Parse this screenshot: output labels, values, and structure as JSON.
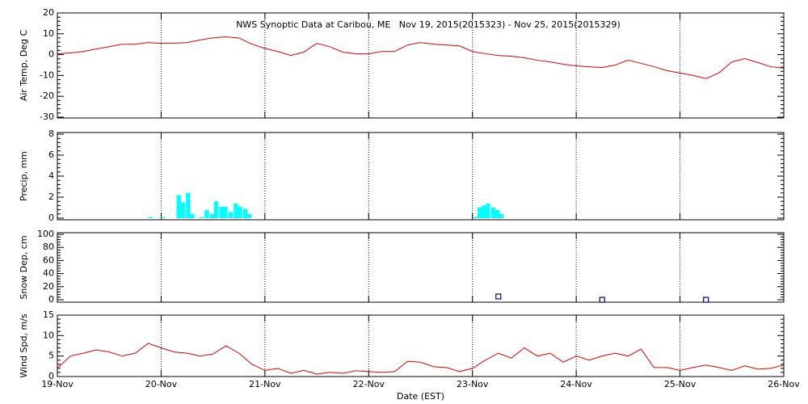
{
  "chart_data": [
    {
      "type": "line",
      "title": "NWS Synoptic Data at Caribou, ME   Nov 19, 2015(2015323) - Nov 25, 2015(2015329)",
      "ylabel": "Air Temp, Deg C",
      "color": "#e00000",
      "x": [
        0,
        0.125,
        0.25,
        0.375,
        0.5,
        0.625,
        0.75,
        0.875,
        1,
        1.125,
        1.25,
        1.375,
        1.5,
        1.625,
        1.75,
        1.875,
        2,
        2.125,
        2.25,
        2.375,
        2.5,
        2.625,
        2.75,
        2.875,
        3,
        3.125,
        3.25,
        3.375,
        3.5,
        3.625,
        3.75,
        3.875,
        4,
        4.125,
        4.25,
        4.375,
        4.5,
        4.625,
        4.75,
        4.875,
        5,
        5.125,
        5.25,
        5.375,
        5.5,
        5.625,
        5.75,
        5.875,
        6,
        6.125,
        6.25,
        6.375,
        6.5,
        6.625,
        6.75,
        6.875,
        7
      ],
      "values": [
        0.4,
        0.8,
        1.5,
        2.7,
        3.8,
        5,
        5,
        5.8,
        5.4,
        5.4,
        5.8,
        7,
        8.1,
        8.5,
        8,
        5,
        3,
        1.5,
        -0.4,
        1.2,
        5.4,
        3.8,
        1.2,
        0.4,
        0.4,
        1.5,
        1.5,
        4.6,
        5.8,
        5,
        4.6,
        4.2,
        1.5,
        0.4,
        -0.4,
        -0.8,
        -1.5,
        -2.7,
        -3.5,
        -4.6,
        -5.4,
        -5.8,
        -6.2,
        -5,
        -2.7,
        -4.2,
        -5.8,
        -7.7,
        -8.8,
        -10,
        -11.5,
        -8.8,
        -3.5,
        -1.9,
        -3.8,
        -5.8,
        -6.5
      ],
      "xlim": [
        0,
        7
      ],
      "xticks": [
        0,
        1,
        2,
        3,
        4,
        5,
        6,
        7
      ],
      "ylim": [
        -30,
        20
      ],
      "yticks": [
        -30,
        -20,
        -10,
        0,
        10,
        20
      ],
      "grid": true
    },
    {
      "type": "bar",
      "ylabel": "Precip, mm",
      "color": "#00ffff",
      "x": [
        0.9,
        1.02,
        1.17,
        1.21,
        1.26,
        1.3,
        1.39,
        1.44,
        1.49,
        1.53,
        1.58,
        1.62,
        1.67,
        1.72,
        1.76,
        1.81,
        1.85,
        4.03,
        4.07,
        4.11,
        4.15,
        4.2,
        4.24,
        4.28
      ],
      "values": [
        0.1,
        0.1,
        2.2,
        1.5,
        2.4,
        0.4,
        0.1,
        0.8,
        0.4,
        1.6,
        1.1,
        1.1,
        0.6,
        1.4,
        1.1,
        0.9,
        0.4,
        0.1,
        1,
        1.2,
        1.4,
        1,
        0.8,
        0.4
      ],
      "xlim": [
        0,
        7
      ],
      "xticks": [
        0,
        1,
        2,
        3,
        4,
        5,
        6,
        7
      ],
      "ylim": [
        0,
        8
      ],
      "yticks": [
        0,
        2,
        4,
        6,
        8
      ],
      "grid": true
    },
    {
      "type": "scatter",
      "ylabel": "Snow Dep, cm",
      "color": "#000080",
      "x": [
        4.25,
        5.25,
        6.25
      ],
      "values": [
        5,
        0,
        0
      ],
      "xlim": [
        0,
        7
      ],
      "xticks": [
        0,
        1,
        2,
        3,
        4,
        5,
        6,
        7
      ],
      "ylim": [
        0,
        100
      ],
      "yticks": [
        0,
        20,
        40,
        60,
        80,
        100
      ],
      "grid": true
    },
    {
      "type": "line",
      "ylabel": "Wind Spd, m/s",
      "xlabel": "Date (EST)",
      "color": "#e00000",
      "x": [
        0,
        0.125,
        0.25,
        0.375,
        0.5,
        0.625,
        0.75,
        0.875,
        1,
        1.125,
        1.25,
        1.375,
        1.5,
        1.625,
        1.75,
        1.875,
        2,
        2.125,
        2.25,
        2.375,
        2.5,
        2.625,
        2.75,
        2.875,
        3,
        3.125,
        3.25,
        3.375,
        3.5,
        3.625,
        3.75,
        3.875,
        4,
        4.125,
        4.25,
        4.375,
        4.5,
        4.625,
        4.75,
        4.875,
        5,
        5.125,
        5.25,
        5.375,
        5.5,
        5.625,
        5.75,
        5.875,
        6,
        6.125,
        6.25,
        6.375,
        6.5,
        6.625,
        6.75,
        6.875,
        7
      ],
      "values": [
        2,
        5,
        5.7,
        6.5,
        6,
        5,
        5.7,
        8.1,
        7,
        6,
        5.7,
        5,
        5.5,
        7.5,
        5.7,
        3,
        1.5,
        2,
        0.8,
        1.5,
        0.6,
        1,
        0.8,
        1.4,
        1.2,
        1,
        1.2,
        3.7,
        3.5,
        2.4,
        2.2,
        1.2,
        2,
        4,
        5.7,
        4.5,
        7,
        5,
        5.7,
        3.5,
        5,
        4,
        5,
        5.7,
        5,
        6.7,
        2.2,
        2.2,
        1.5,
        2.2,
        2.8,
        2.2,
        1.5,
        2.6,
        1.8,
        2,
        2.8
      ],
      "xlim": [
        0,
        7
      ],
      "xticks": [
        {
          "value": 0,
          "label": "19-Nov"
        },
        {
          "value": 1,
          "label": "20-Nov"
        },
        {
          "value": 2,
          "label": "21-Nov"
        },
        {
          "value": 3,
          "label": "22-Nov"
        },
        {
          "value": 4,
          "label": "23-Nov"
        },
        {
          "value": 5,
          "label": "24-Nov"
        },
        {
          "value": 6,
          "label": "25-Nov"
        },
        {
          "value": 7,
          "label": "26-Nov"
        }
      ],
      "ylim": [
        0,
        15
      ],
      "yticks": [
        0,
        5,
        10,
        15
      ],
      "grid": true
    }
  ]
}
